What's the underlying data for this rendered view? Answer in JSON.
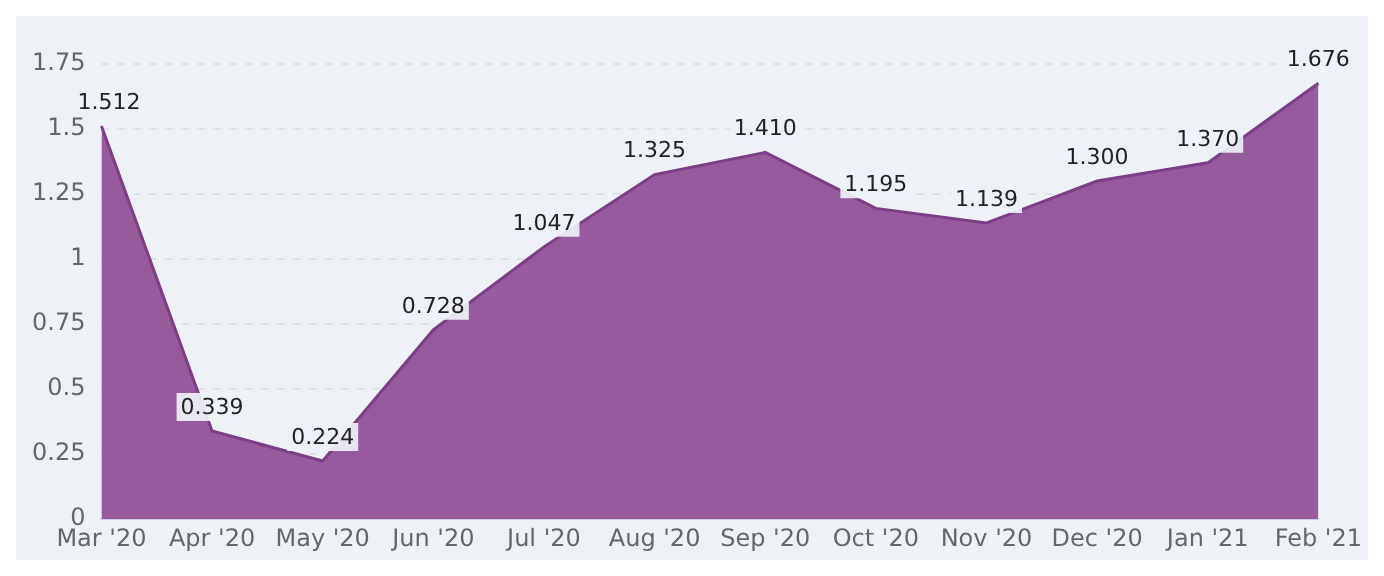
{
  "chart_data": {
    "type": "area",
    "categories": [
      "Mar '20",
      "Apr '20",
      "May '20",
      "Jun '20",
      "Jul '20",
      "Aug '20",
      "Sep '20",
      "Oct '20",
      "Nov '20",
      "Dec '20",
      "Jan '21",
      "Feb '21"
    ],
    "series": [
      {
        "color": "#955b9c",
        "values": [
          1.512,
          0.339,
          0.224,
          0.728,
          1.047,
          1.325,
          1.41,
          1.195,
          1.139,
          1.3,
          1.37,
          1.676
        ],
        "value_labels": [
          "1.512",
          "0.339",
          "0.224",
          "0.728",
          "1.047",
          "1.325",
          "1.410",
          "1.195",
          "1.139",
          "1.300",
          "1.370",
          "1.676"
        ]
      }
    ],
    "ylim": [
      0,
      1.75
    ],
    "yticks": [
      0,
      0.25,
      0.5,
      0.75,
      1,
      1.25,
      1.5,
      1.75
    ],
    "grid": "y",
    "legend": false
  }
}
